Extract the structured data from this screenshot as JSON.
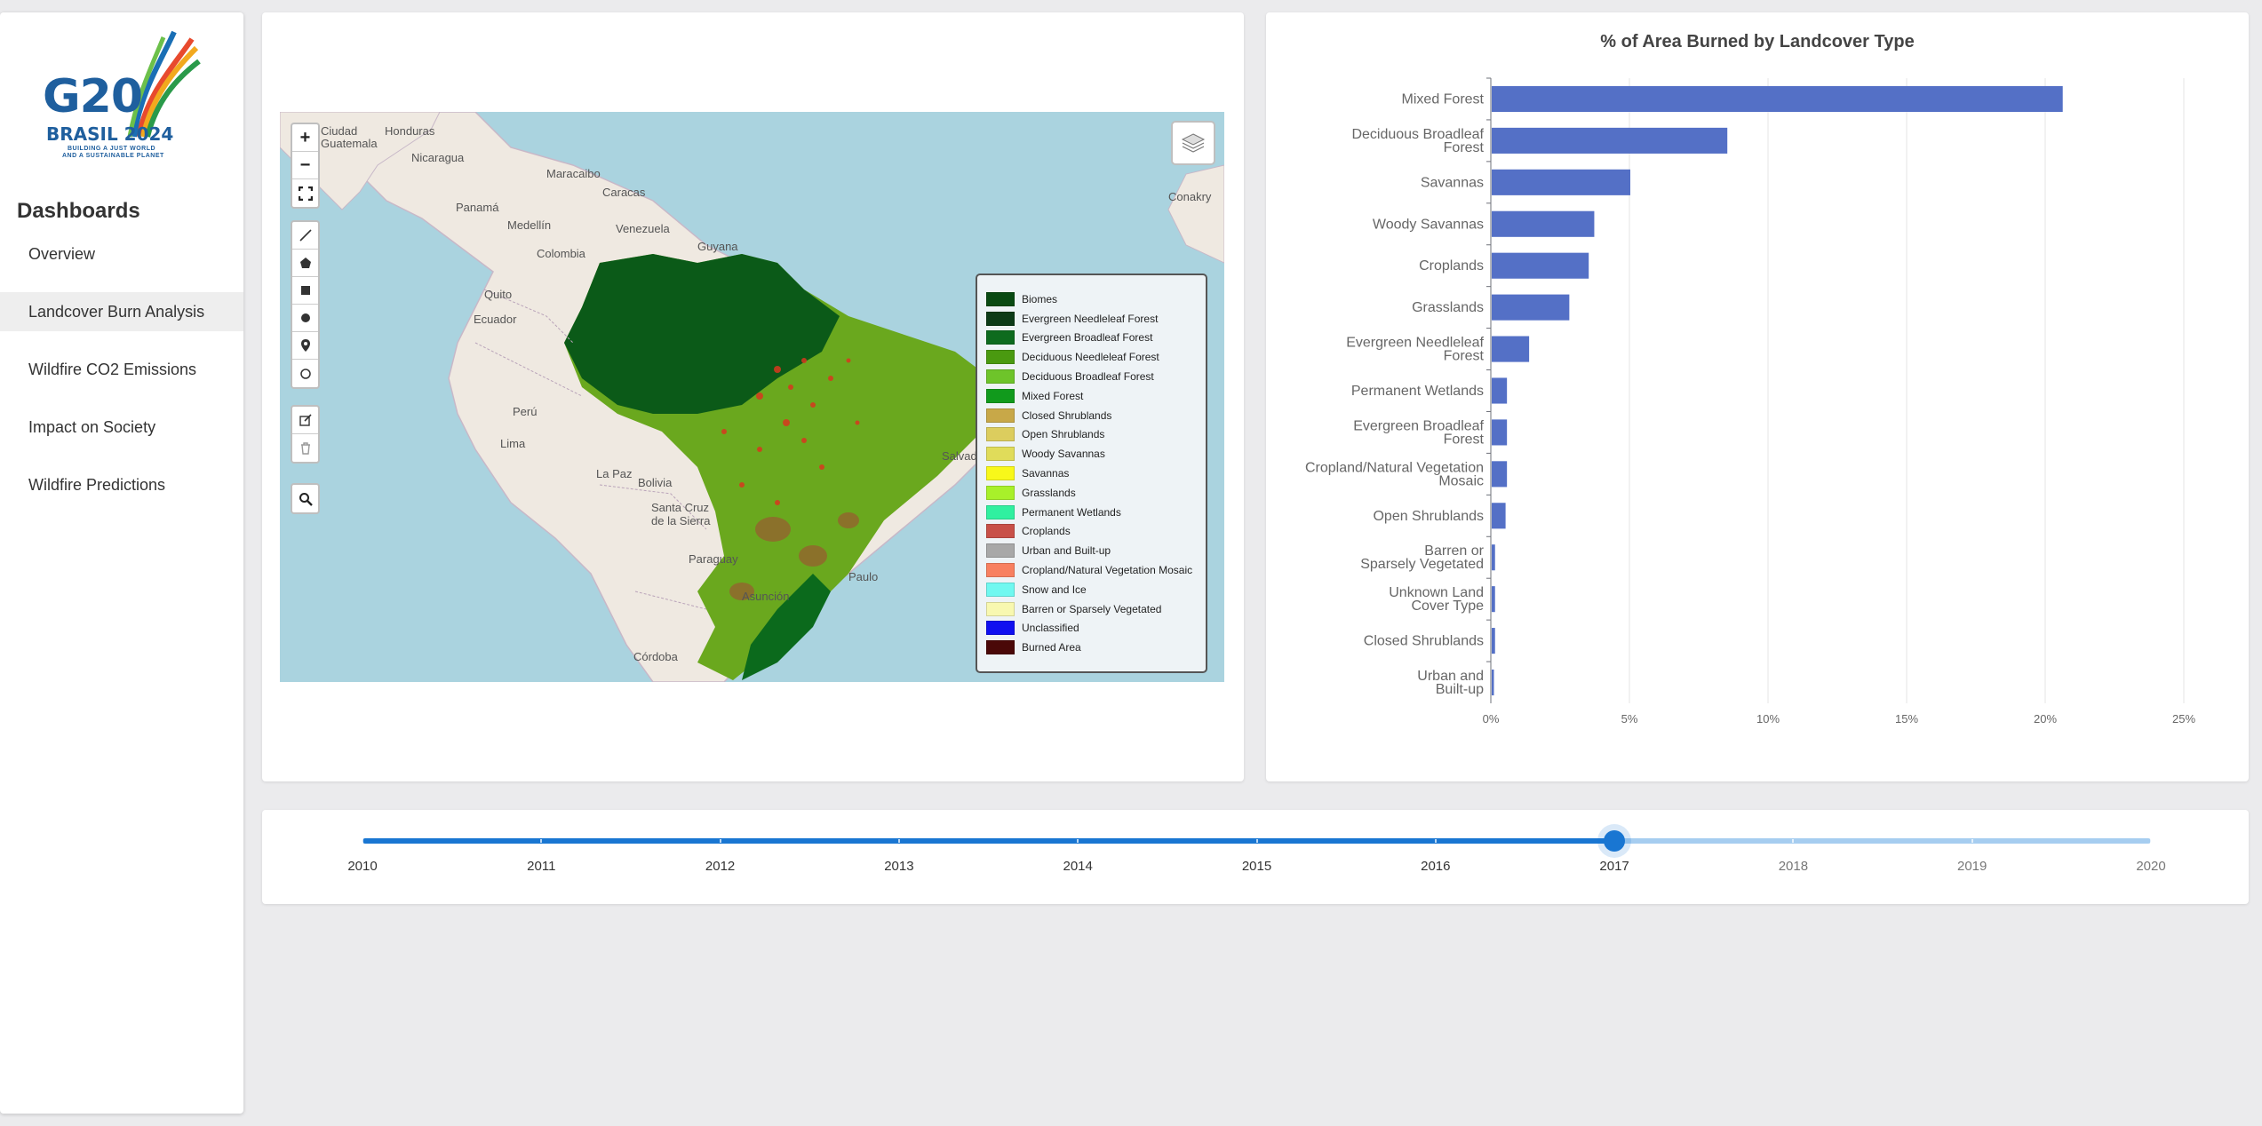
{
  "sidebar": {
    "logo": {
      "title": "G20",
      "subtitle": "BRASIL 2024",
      "tagline1": "BUILDING A JUST WORLD",
      "tagline2": "AND A SUSTAINABLE PLANET"
    },
    "heading": "Dashboards",
    "items": [
      {
        "label": "Overview",
        "active": false
      },
      {
        "label": "Landcover Burn Analysis",
        "active": true
      },
      {
        "label": "Wildfire CO2 Emissions",
        "active": false
      },
      {
        "label": "Impact on Society",
        "active": false
      },
      {
        "label": "Wildfire Predictions",
        "active": false
      }
    ]
  },
  "map": {
    "labels": [
      "Honduras",
      "Nicaragua",
      "Guatemala",
      "Maracaibo",
      "Caracas",
      "Panamá",
      "Medellín",
      "Venezuela",
      "Colombia",
      "Guyana",
      "Quito",
      "Ecuador",
      "Perú",
      "Lima",
      "La Paz",
      "Bolivia",
      "Santa Cruz de la Sierra",
      "Paraguay",
      "Asunción",
      "Córdoba",
      "Salvador",
      "Paulo",
      "Conakry",
      "Ciudad"
    ],
    "legend": [
      {
        "label": "Biomes",
        "color": "#0a4a12"
      },
      {
        "label": "Evergreen Needleleaf Forest",
        "color": "#0d3b17"
      },
      {
        "label": "Evergreen Broadleaf Forest",
        "color": "#0e6b1e"
      },
      {
        "label": "Deciduous Needleleaf Forest",
        "color": "#4a9a10"
      },
      {
        "label": "Deciduous Broadleaf Forest",
        "color": "#6ec42a"
      },
      {
        "label": "Mixed Forest",
        "color": "#119a1c"
      },
      {
        "label": "Closed Shrublands",
        "color": "#c8a848"
      },
      {
        "label": "Open Shrublands",
        "color": "#dccd5e"
      },
      {
        "label": "Woody Savannas",
        "color": "#e0dc5a"
      },
      {
        "label": "Savannas",
        "color": "#f8f81a"
      },
      {
        "label": "Grasslands",
        "color": "#a8f02a"
      },
      {
        "label": "Permanent Wetlands",
        "color": "#30f0a0"
      },
      {
        "label": "Croplands",
        "color": "#c85048"
      },
      {
        "label": "Urban and Built-up",
        "color": "#a8a8a8"
      },
      {
        "label": "Cropland/Natural Vegetation Mosaic",
        "color": "#f88060"
      },
      {
        "label": "Snow and Ice",
        "color": "#70f8f0"
      },
      {
        "label": "Barren or Sparsely Vegetated",
        "color": "#f8f8b0"
      },
      {
        "label": "Unclassified",
        "color": "#1010f0"
      },
      {
        "label": "Burned Area",
        "color": "#4a0808"
      }
    ]
  },
  "chart_data": {
    "type": "bar",
    "orientation": "horizontal",
    "title": "% of Area Burned by Landcover Type",
    "categories": [
      [
        "Mixed Forest"
      ],
      [
        "Deciduous Broadleaf",
        "Forest"
      ],
      [
        "Savannas"
      ],
      [
        "Woody Savannas"
      ],
      [
        "Croplands"
      ],
      [
        "Grasslands"
      ],
      [
        "Evergreen Needleleaf",
        "Forest"
      ],
      [
        "Permanent Wetlands"
      ],
      [
        "Evergreen Broadleaf",
        "Forest"
      ],
      [
        "Cropland/Natural Vegetation",
        "Mosaic"
      ],
      [
        "Open Shrublands"
      ],
      [
        "Barren or",
        "Sparsely Vegetated"
      ],
      [
        "Unknown Land",
        "Cover Type"
      ],
      [
        "Closed Shrublands"
      ],
      [
        "Urban and",
        "Built-up"
      ]
    ],
    "values": [
      20.6,
      8.5,
      5.0,
      3.7,
      3.5,
      2.8,
      1.35,
      0.55,
      0.55,
      0.55,
      0.5,
      0.12,
      0.12,
      0.12,
      0.08
    ],
    "xlim": [
      0,
      25
    ],
    "ticks": [
      0,
      5,
      10,
      15,
      20,
      25
    ],
    "tick_labels": [
      "0%",
      "5%",
      "10%",
      "15%",
      "20%",
      "25%"
    ],
    "bar_color": "#5470c6"
  },
  "slider": {
    "years": [
      "2010",
      "2011",
      "2012",
      "2013",
      "2014",
      "2015",
      "2016",
      "2017",
      "2018",
      "2019",
      "2020"
    ],
    "selected": "2017"
  }
}
